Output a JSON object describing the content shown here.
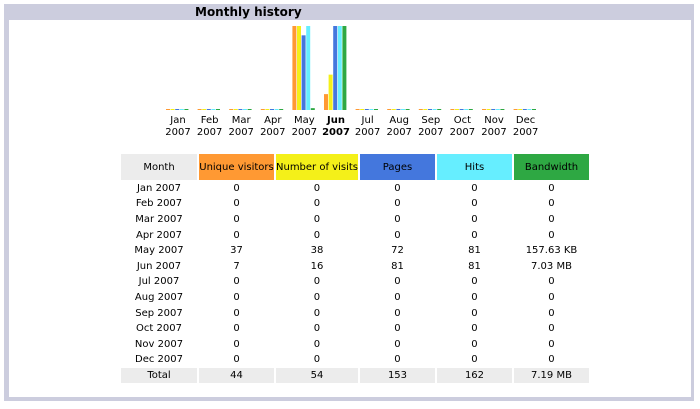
{
  "header": {
    "title": "Monthly history"
  },
  "colors": {
    "unique_visitors": "#ff9933",
    "visits": "#f4f019",
    "pages": "#4477dd",
    "hits": "#66eeff",
    "bandwidth": "#2ea843"
  },
  "table": {
    "headers": {
      "month": "Month",
      "unique_visitors": "Unique visitors",
      "visits": "Number of visits",
      "pages": "Pages",
      "hits": "Hits",
      "bandwidth": "Bandwidth"
    },
    "rows": [
      {
        "month": "Jan 2007",
        "uv": "0",
        "nv": "0",
        "pg": "0",
        "hits": "0",
        "bw": "0"
      },
      {
        "month": "Feb 2007",
        "uv": "0",
        "nv": "0",
        "pg": "0",
        "hits": "0",
        "bw": "0"
      },
      {
        "month": "Mar 2007",
        "uv": "0",
        "nv": "0",
        "pg": "0",
        "hits": "0",
        "bw": "0"
      },
      {
        "month": "Apr 2007",
        "uv": "0",
        "nv": "0",
        "pg": "0",
        "hits": "0",
        "bw": "0"
      },
      {
        "month": "May 2007",
        "uv": "37",
        "nv": "38",
        "pg": "72",
        "hits": "81",
        "bw": "157.63 KB"
      },
      {
        "month": "Jun 2007",
        "uv": "7",
        "nv": "16",
        "pg": "81",
        "hits": "81",
        "bw": "7.03 MB"
      },
      {
        "month": "Jul 2007",
        "uv": "0",
        "nv": "0",
        "pg": "0",
        "hits": "0",
        "bw": "0"
      },
      {
        "month": "Aug 2007",
        "uv": "0",
        "nv": "0",
        "pg": "0",
        "hits": "0",
        "bw": "0"
      },
      {
        "month": "Sep 2007",
        "uv": "0",
        "nv": "0",
        "pg": "0",
        "hits": "0",
        "bw": "0"
      },
      {
        "month": "Oct 2007",
        "uv": "0",
        "nv": "0",
        "pg": "0",
        "hits": "0",
        "bw": "0"
      },
      {
        "month": "Nov 2007",
        "uv": "0",
        "nv": "0",
        "pg": "0",
        "hits": "0",
        "bw": "0"
      },
      {
        "month": "Dec 2007",
        "uv": "0",
        "nv": "0",
        "pg": "0",
        "hits": "0",
        "bw": "0"
      }
    ],
    "total": {
      "label": "Total",
      "uv": "44",
      "nv": "54",
      "pg": "153",
      "hits": "162",
      "bw": "7.19 MB"
    },
    "current_month_index": 5
  },
  "chart_data": {
    "type": "bar",
    "categories": [
      "Jan",
      "Feb",
      "Mar",
      "Apr",
      "May",
      "Jun",
      "Jul",
      "Aug",
      "Sep",
      "Oct",
      "Nov",
      "Dec"
    ],
    "year": "2007",
    "current_category": "Jun",
    "series": [
      {
        "name": "Unique visitors",
        "values": [
          0,
          0,
          0,
          0,
          37,
          7,
          0,
          0,
          0,
          0,
          0,
          0
        ]
      },
      {
        "name": "Number of visits",
        "values": [
          0,
          0,
          0,
          0,
          38,
          16,
          0,
          0,
          0,
          0,
          0,
          0
        ]
      },
      {
        "name": "Pages",
        "values": [
          0,
          0,
          0,
          0,
          72,
          81,
          0,
          0,
          0,
          0,
          0,
          0
        ]
      },
      {
        "name": "Hits",
        "values": [
          0,
          0,
          0,
          0,
          81,
          81,
          0,
          0,
          0,
          0,
          0,
          0
        ]
      },
      {
        "name": "Bandwidth",
        "values": [
          0,
          0,
          0,
          0,
          0.154,
          7.03,
          0,
          0,
          0,
          0,
          0,
          0
        ]
      }
    ],
    "xlabel": "",
    "ylabel": ""
  }
}
